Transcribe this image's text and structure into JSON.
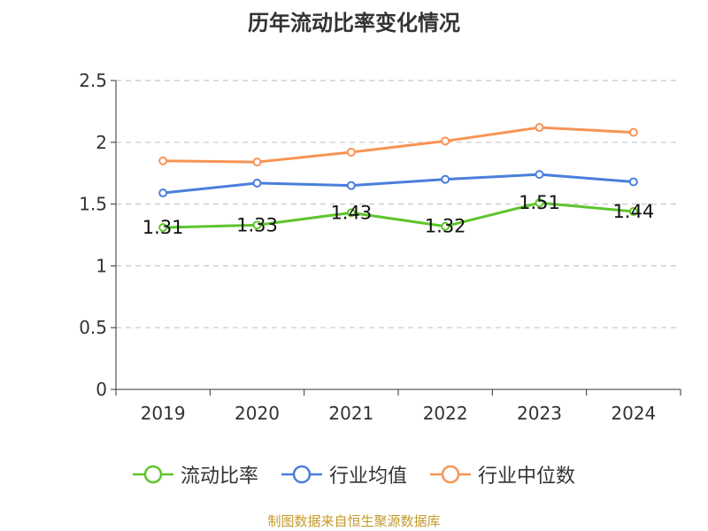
{
  "chart_data": {
    "type": "line",
    "title": "历年流动比率变化情况",
    "categories": [
      "2019",
      "2020",
      "2021",
      "2022",
      "2023",
      "2024"
    ],
    "ylim": [
      0,
      2.5
    ],
    "yticks": [
      "0",
      "0.5",
      "1",
      "1.5",
      "2",
      "2.5"
    ],
    "grid": true,
    "legend_position": "bottom",
    "series": [
      {
        "name": "流动比率",
        "color": "#5ec52b",
        "values": [
          1.31,
          1.33,
          1.43,
          1.32,
          1.51,
          1.44
        ],
        "data_labels": [
          "1.31",
          "1.33",
          "1.43",
          "1.32",
          "1.51",
          "1.44"
        ]
      },
      {
        "name": "行业均值",
        "color": "#4a7fdc",
        "values": [
          1.59,
          1.67,
          1.65,
          1.7,
          1.74,
          1.68
        ]
      },
      {
        "name": "行业中位数",
        "color": "#f79455",
        "values": [
          1.85,
          1.84,
          1.92,
          2.01,
          2.12,
          2.08
        ]
      }
    ]
  },
  "source_text": "制图数据来自恒生聚源数据库"
}
